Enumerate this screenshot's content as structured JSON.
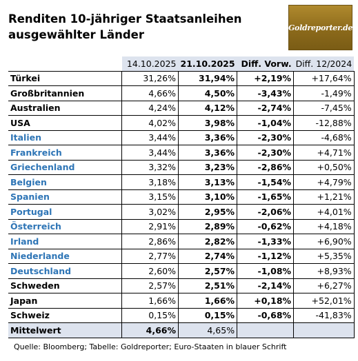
{
  "title_line1": "Renditen 10-jähriger Staatsanleihen",
  "title_line2": "ausgewählter Länder",
  "logo_text": "Goldreporter.de",
  "headers": [
    "14.10.2025",
    "21.10.2025",
    "Diff. Vorw.",
    "Diff. 12/2024"
  ],
  "rows": [
    {
      "name": "Türkei",
      "v1": "31,26%",
      "v2": "31,94%",
      "d1": "+2,19%",
      "d2": "+17,64%",
      "euro": false
    },
    {
      "name": "Großbritannien",
      "v1": "4,66%",
      "v2": "4,50%",
      "d1": "-3,43%",
      "d2": "-1,49%",
      "euro": false
    },
    {
      "name": "Australien",
      "v1": "4,24%",
      "v2": "4,12%",
      "d1": "-2,74%",
      "d2": "-7,45%",
      "euro": false
    },
    {
      "name": "USA",
      "v1": "4,02%",
      "v2": "3,98%",
      "d1": "-1,04%",
      "d2": "-12,88%",
      "euro": false
    },
    {
      "name": "Italien",
      "v1": "3,44%",
      "v2": "3,36%",
      "d1": "-2,30%",
      "d2": "-4,68%",
      "euro": true
    },
    {
      "name": "Frankreich",
      "v1": "3,44%",
      "v2": "3,36%",
      "d1": "-2,30%",
      "d2": "+4,71%",
      "euro": true
    },
    {
      "name": "Griechenland",
      "v1": "3,32%",
      "v2": "3,23%",
      "d1": "-2,86%",
      "d2": "+0,50%",
      "euro": true
    },
    {
      "name": "Belgien",
      "v1": "3,18%",
      "v2": "3,13%",
      "d1": "-1,54%",
      "d2": "+4,79%",
      "euro": true
    },
    {
      "name": "Spanien",
      "v1": "3,15%",
      "v2": "3,10%",
      "d1": "-1,65%",
      "d2": "+1,21%",
      "euro": true
    },
    {
      "name": "Portugal",
      "v1": "3,02%",
      "v2": "2,95%",
      "d1": "-2,06%",
      "d2": "+4,01%",
      "euro": true
    },
    {
      "name": "Österreich",
      "v1": "2,91%",
      "v2": "2,89%",
      "d1": "-0,62%",
      "d2": "+4,18%",
      "euro": true
    },
    {
      "name": "Irland",
      "v1": "2,86%",
      "v2": "2,82%",
      "d1": "-1,33%",
      "d2": "+6,90%",
      "euro": true
    },
    {
      "name": "Niederlande",
      "v1": "2,77%",
      "v2": "2,74%",
      "d1": "-1,12%",
      "d2": "+5,35%",
      "euro": true
    },
    {
      "name": "Deutschland",
      "v1": "2,60%",
      "v2": "2,57%",
      "d1": "-1,08%",
      "d2": "+8,93%",
      "euro": true
    },
    {
      "name": "Schweden",
      "v1": "2,57%",
      "v2": "2,51%",
      "d1": "-2,14%",
      "d2": "+6,27%",
      "euro": false
    },
    {
      "name": "Japan",
      "v1": "1,66%",
      "v2": "1,66%",
      "d1": "+0,18%",
      "d2": "+52,01%",
      "euro": false
    },
    {
      "name": "Schweiz",
      "v1": "0,15%",
      "v2": "0,15%",
      "d1": "-0,68%",
      "d2": "-41,83%",
      "euro": false
    }
  ],
  "mean": {
    "name": "Mittelwert",
    "v1": "4,66%",
    "v2": "4,65%"
  },
  "source": "Quelle: Bloomberg; Tabelle: Goldreporter; Euro-Staaten in blauer Schrift",
  "colors": {
    "euro_text": "#2e75b6",
    "header_bg": "#dde3ee",
    "logo_gold": "#9a7724"
  }
}
